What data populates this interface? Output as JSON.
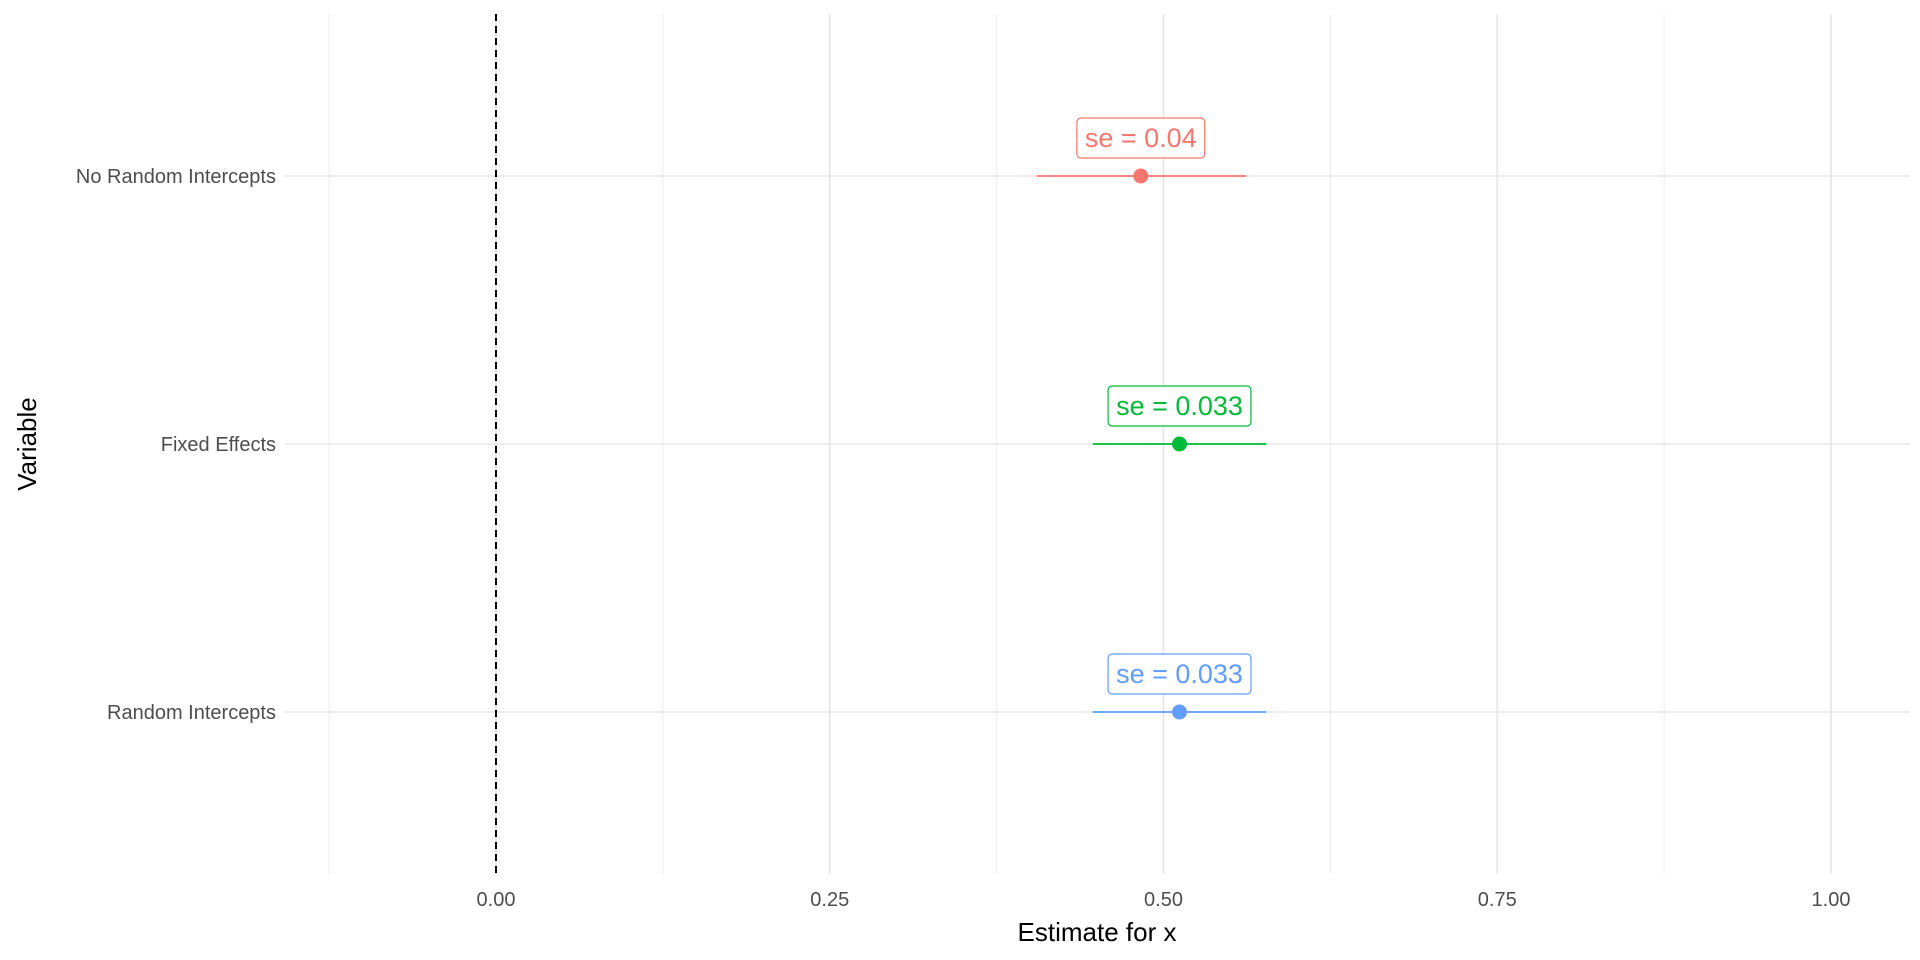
{
  "chart_data": {
    "type": "scatter",
    "subtype": "coefficient-plot",
    "title": "",
    "xlabel": "Estimate for x",
    "ylabel": "Variable",
    "xlim": [
      -0.125,
      1.05
    ],
    "x_ticks": [
      0.0,
      0.25,
      0.5,
      0.75,
      1.0
    ],
    "x_tick_labels": [
      "0.00",
      "0.25",
      "0.50",
      "0.75",
      "1.00"
    ],
    "reference_line": {
      "x": 0,
      "style": "dashed",
      "color": "#000000"
    },
    "grid": true,
    "legend": "none",
    "categories": [
      "No Random Intercepts",
      "Fixed Effects",
      "Random Intercepts"
    ],
    "series": [
      {
        "category": "No Random Intercepts",
        "estimate": 0.483,
        "lower": 0.405,
        "upper": 0.562,
        "se_label": "se = 0.04",
        "color": "#F8766D"
      },
      {
        "category": "Fixed Effects",
        "estimate": 0.512,
        "lower": 0.447,
        "upper": 0.577,
        "se_label": "se = 0.033",
        "color": "#00BA38"
      },
      {
        "category": "Random Intercepts",
        "estimate": 0.512,
        "lower": 0.447,
        "upper": 0.577,
        "se_label": "se = 0.033",
        "color": "#619CFF"
      }
    ]
  }
}
